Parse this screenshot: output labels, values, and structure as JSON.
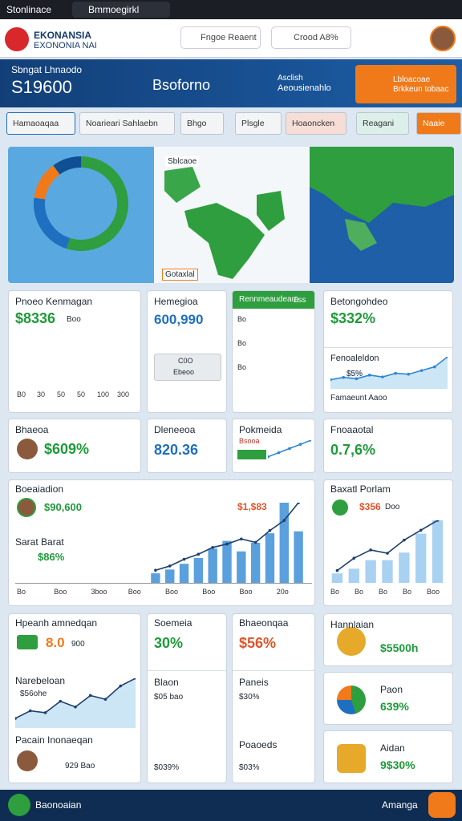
{
  "status_bar": {
    "app": "Stonlinace",
    "tab": "Bmmoegirkl"
  },
  "header": {
    "brand": "EKONANSIA",
    "brand_sub": "EXONONIA NAI",
    "search": "Fngoe Reaent",
    "filter": "Crood A8%"
  },
  "banner": {
    "label": "Sbngat Lhnaodo",
    "value": "S19600",
    "item": "Bsoforno",
    "stat_top": "Asclish",
    "stat_bottom": "Aeousienahlo",
    "button_top": "Lbloacoae",
    "button_bottom": "Brkkeun tobaac"
  },
  "tabs": [
    "Hamaoaqaa",
    "Noarieari Sahlaebn",
    "Bhgo",
    "Plsgle",
    "Hoaoncken",
    "Reagani",
    "Naaie"
  ],
  "map_panel": {
    "donut": {
      "values": [
        55,
        22,
        13,
        10
      ],
      "colors": [
        "#2e9e3e",
        "#1f6fc0",
        "#f07a1a",
        "#0f4f94"
      ]
    },
    "map_label": "Sblcaoe",
    "map_footer": "Gotaxlal"
  },
  "row1": [
    {
      "title": "Pnoeo Kenmagan",
      "value": "$8336",
      "sub": "Boo",
      "bars": {
        "values": [
          6,
          7,
          8,
          11,
          5,
          6,
          8,
          6
        ],
        "color": "#2f86d6"
      },
      "x_labels": [
        "B0",
        "30",
        "50",
        "50",
        "100",
        "300"
      ]
    },
    {
      "title": "Hemegioa",
      "value": "600,990",
      "box_top": "C0O",
      "box_bottom": "Ebeoo"
    },
    {
      "title": "Rennmeaudeam",
      "badge": "£ss",
      "y_labels": [
        "Bo",
        "Bo",
        "Bo"
      ],
      "bars": {
        "values": [
          3,
          6,
          3,
          5,
          10
        ],
        "colors": [
          "#2e9e3e",
          "#f07a1a",
          "#2e9e3e",
          "#2e9e3e",
          "#2f86d6"
        ]
      }
    },
    {
      "title": "Betongohdeo",
      "value": "$332%",
      "sub_title": "Fenoaleldon",
      "badge": "$5%",
      "line": {
        "values": [
          2,
          2.5,
          2.2,
          3,
          2.6,
          3.4,
          3.2,
          4,
          4.8,
          7
        ],
        "color": "#2f86d6"
      },
      "footer": "Famaeunt Aaoo"
    }
  ],
  "row2": [
    {
      "title": "Bhaeoa",
      "value": "$609%"
    },
    {
      "title": "Dleneeoa",
      "value": "820.36"
    },
    {
      "title": "Pokmeida",
      "badge": "Bsooa",
      "line": {
        "values": [
          1,
          2,
          3,
          4,
          5
        ],
        "color": "#2f86d6"
      }
    },
    {
      "title": "Fnoaaotal",
      "value": "0.7,6%"
    }
  ],
  "row3": [
    {
      "title": "Boeaiadion",
      "tag": "$90,600",
      "red_value": "$1,$83",
      "sub_title": "Sarat Barat",
      "sub_value": "$86%",
      "bars": {
        "values": [
          1,
          1.4,
          2,
          2.6,
          3.6,
          4.4,
          3.3,
          4.2,
          5.2,
          8.4,
          5.4
        ],
        "color": "#5aa0dc"
      },
      "line": {
        "values": [
          1.5,
          2,
          2.8,
          3.4,
          4.2,
          4.6,
          5.2,
          4.8,
          6.2,
          7.4,
          9.5
        ],
        "color": "#1e3f6e"
      },
      "x_labels": [
        "Bo",
        "Boo",
        "3boo",
        "Boo",
        "Boo",
        "Boo",
        "Boo",
        "20o"
      ]
    },
    {
      "title": "Baxatl Porlam",
      "red_value": "$356",
      "sub": "Doo",
      "bars": {
        "values": [
          1,
          1.5,
          2.4,
          2.4,
          3.2,
          5.2,
          6.6
        ],
        "color": "#a9d1f2"
      },
      "line": {
        "values": [
          1.5,
          3,
          4,
          3.6,
          5.2,
          6.4,
          7.6
        ],
        "color": "#1e3f6e"
      },
      "x_labels": [
        "Bo",
        "Bo",
        "Bo",
        "Bo",
        "Boo"
      ]
    }
  ],
  "row4": [
    {
      "title": "Hpeanh amnedqan",
      "value": "8.0",
      "sub": "900",
      "mid_title": "Narebeloan",
      "mid_value": "$56ohe",
      "line": {
        "values": [
          1,
          1.8,
          1.6,
          2.8,
          2.2,
          3.4,
          3,
          4.4,
          5.2
        ],
        "color": "#1e3f6e"
      },
      "bottom_title": "Pacain Inonaeqan",
      "bottom_value": "929 Bao"
    },
    {
      "title": "Soemeia",
      "value": "30%",
      "mid_title": "Blaon",
      "mid_value": "$05 bao",
      "mid_value2": "$039%",
      "bars": {
        "values": [
          1,
          1.5,
          2,
          2.5,
          3.2,
          4.2,
          5.6,
          9.6
        ],
        "colors": [
          "#f07a1a",
          "#f07a1a",
          "#2e9e3e",
          "#2e9e3e",
          "#2e9e3e",
          "#2f86d6",
          "#2e9e3e",
          "#2f86d6"
        ]
      }
    },
    {
      "title": "Bhaeonqaa",
      "value": "$56%",
      "mid_title": "Paneis",
      "mid_value": "$30%",
      "bottom_title": "Poaoeds",
      "bottom_value": "$03%",
      "bars": {
        "values": [
          1,
          1.5,
          2,
          3,
          4,
          5.2,
          6,
          8.6
        ],
        "colors": [
          "#f07a1a",
          "#f07a1a",
          "#2e9e3e",
          "#2e9e3e",
          "#2f86d6",
          "#2e9e3e",
          "#2e9e3e",
          "#2e9e3e"
        ]
      }
    },
    {
      "title": "Hannlaian",
      "value": "$5500h",
      "mid_title": "Paon",
      "mid_value": "639%",
      "bottom_title": "Aidan",
      "bottom_value": "9$30%"
    }
  ],
  "bottom_nav": {
    "left": "Baonoaian",
    "right": "Amanga"
  }
}
